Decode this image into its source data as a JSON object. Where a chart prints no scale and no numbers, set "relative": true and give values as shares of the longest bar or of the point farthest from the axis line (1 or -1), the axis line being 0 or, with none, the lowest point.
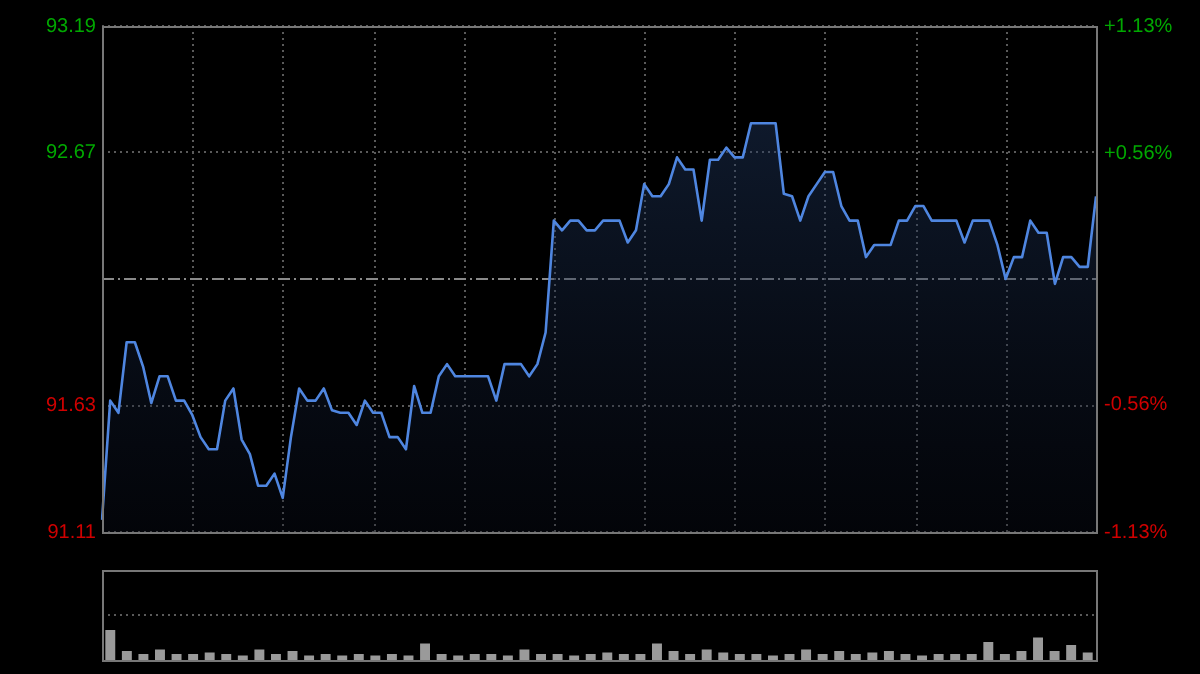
{
  "chart_data": [
    {
      "type": "area",
      "categories": [
        null,
        null,
        null,
        null,
        null,
        null,
        null,
        null,
        null,
        null,
        null,
        null,
        null,
        null,
        null,
        null,
        null,
        null,
        null,
        null,
        null,
        null,
        null,
        null,
        null,
        null,
        null,
        null,
        null,
        null,
        null,
        null,
        null,
        null,
        null,
        null,
        null,
        null,
        null,
        null,
        null,
        null,
        null,
        null,
        null,
        null,
        null,
        null,
        null,
        null,
        null,
        null,
        null,
        null,
        null,
        null,
        null,
        null,
        null,
        null,
        null,
        null,
        null,
        null,
        null,
        null,
        null,
        null,
        null,
        null,
        null,
        null,
        null,
        null,
        null,
        null,
        null,
        null,
        null,
        null,
        null,
        null,
        null,
        null,
        null,
        null,
        null,
        null,
        null,
        null,
        null,
        null,
        null,
        null,
        null,
        null,
        null,
        null,
        null,
        null,
        null,
        null,
        null,
        null,
        null,
        null,
        null,
        null,
        null,
        null,
        null,
        null,
        null,
        null,
        null,
        null,
        null,
        null,
        null,
        null,
        null,
        null
      ],
      "series": [
        {
          "color": "#4f86e0",
          "values": [
            91.16,
            91.65,
            91.6,
            91.89,
            91.89,
            91.79,
            91.64,
            91.75,
            91.75,
            91.65,
            91.65,
            91.59,
            91.5,
            91.45,
            91.45,
            91.65,
            91.7,
            91.49,
            91.43,
            91.3,
            91.3,
            91.35,
            91.25,
            91.5,
            91.7,
            91.65,
            91.65,
            91.7,
            91.61,
            91.6,
            91.6,
            91.55,
            91.65,
            91.6,
            91.6,
            91.5,
            91.5,
            91.45,
            91.71,
            91.6,
            91.6,
            91.75,
            91.8,
            91.75,
            91.75,
            91.75,
            91.75,
            91.75,
            91.65,
            91.8,
            91.8,
            91.8,
            91.75,
            91.8,
            91.93,
            92.39,
            92.35,
            92.39,
            92.39,
            92.35,
            92.35,
            92.39,
            92.39,
            92.39,
            92.3,
            92.35,
            92.54,
            92.49,
            92.49,
            92.54,
            92.65,
            92.6,
            92.6,
            92.39,
            92.64,
            92.64,
            92.69,
            92.65,
            92.65,
            92.79,
            92.79,
            92.79,
            92.79,
            92.5,
            92.49,
            92.39,
            92.49,
            92.54,
            92.59,
            92.59,
            92.45,
            92.39,
            92.39,
            92.24,
            92.29,
            92.29,
            92.29,
            92.39,
            92.39,
            92.45,
            92.45,
            92.39,
            92.39,
            92.39,
            92.39,
            92.3,
            92.39,
            92.39,
            92.39,
            92.29,
            92.15,
            92.24,
            92.24,
            92.39,
            92.34,
            92.34,
            92.13,
            92.24,
            92.24,
            92.2,
            92.2,
            92.49
          ]
        }
      ],
      "ylim": [
        91.11,
        93.19
      ],
      "yticks": [
        91.11,
        91.63,
        92.67,
        93.19
      ],
      "y2lim": [
        -1.13,
        1.13
      ],
      "y2ticks": [
        {
          "value": -1.13,
          "label": "-1.13%"
        },
        {
          "value": -0.56,
          "label": "-0.56%"
        },
        {
          "value": 0.56,
          "label": "+0.56%"
        },
        {
          "value": 1.13,
          "label": "+1.13%"
        }
      ],
      "ref_lines": [
        {
          "axis": "y",
          "value": 92.15,
          "color": "#8a8a8a",
          "line_style": "dashed"
        }
      ],
      "grid": true,
      "legend": false,
      "marker": "none"
    },
    {
      "type": "bar",
      "categories": [
        null,
        null,
        null,
        null,
        null,
        null,
        null,
        null,
        null,
        null,
        null,
        null,
        null,
        null,
        null,
        null,
        null,
        null,
        null,
        null,
        null,
        null,
        null,
        null,
        null,
        null,
        null,
        null,
        null,
        null,
        null,
        null,
        null,
        null,
        null,
        null,
        null,
        null,
        null,
        null,
        null,
        null,
        null,
        null,
        null,
        null,
        null,
        null,
        null,
        null,
        null,
        null,
        null,
        null,
        null,
        null,
        null,
        null,
        null,
        null
      ],
      "values": [
        1,
        0.3,
        0.2,
        0.35,
        0.2,
        0.2,
        0.25,
        0.2,
        0.15,
        0.35,
        0.2,
        0.3,
        0.15,
        0.2,
        0.15,
        0.2,
        0.15,
        0.2,
        0.15,
        0.55,
        0.2,
        0.15,
        0.2,
        0.2,
        0.15,
        0.35,
        0.2,
        0.2,
        0.15,
        0.2,
        0.25,
        0.2,
        0.2,
        0.55,
        0.3,
        0.2,
        0.35,
        0.25,
        0.2,
        0.2,
        0.15,
        0.2,
        0.35,
        0.2,
        0.3,
        0.2,
        0.25,
        0.3,
        0.2,
        0.15,
        0.2,
        0.2,
        0.2,
        0.6,
        0.2,
        0.3,
        0.75,
        0.3,
        0.5,
        0.25
      ],
      "color": "#9a9a9a",
      "relative": true,
      "grid": true
    }
  ]
}
